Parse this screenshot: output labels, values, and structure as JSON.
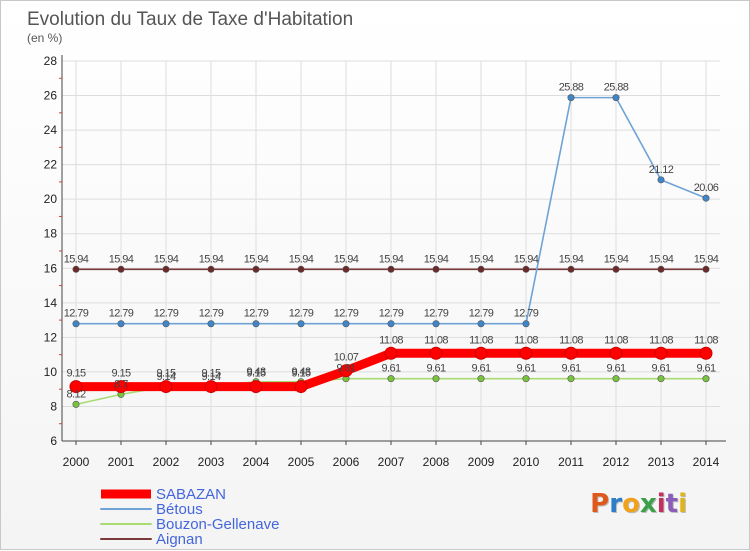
{
  "chart_data": {
    "type": "line",
    "title": "Evolution du Taux de Taxe d'Habitation",
    "subtitle": "(en %)",
    "xlabel": "",
    "ylabel": "",
    "categories": [
      "2000",
      "2001",
      "2002",
      "2003",
      "2004",
      "2005",
      "2006",
      "2007",
      "2008",
      "2009",
      "2010",
      "2011",
      "2012",
      "2013",
      "2014"
    ],
    "ylim": [
      6,
      28
    ],
    "yticks": [
      6,
      8,
      10,
      12,
      14,
      16,
      18,
      20,
      22,
      24,
      26,
      28
    ],
    "grid": true,
    "legend_placement": "bottom-left",
    "series": [
      {
        "name": "SABAZAN",
        "color": "#ff0000",
        "marker_color": "#ff0000",
        "values": [
          9.15,
          9.15,
          9.15,
          9.15,
          9.15,
          9.15,
          10.07,
          11.08,
          11.08,
          11.08,
          11.08,
          11.08,
          11.08,
          11.08,
          11.08
        ],
        "labels": [
          "9.15",
          "9.15",
          "9.15",
          "9.15",
          "9.15",
          "9.15",
          "10.07",
          "11.08",
          "11.08",
          "11.08",
          "11.08",
          "11.08",
          "11.08",
          "11.08",
          "11.08"
        ]
      },
      {
        "name": "Bétous",
        "color": "#6fa3d6",
        "marker_color": "#3f86c9",
        "values": [
          12.79,
          12.79,
          12.79,
          12.79,
          12.79,
          12.79,
          12.79,
          12.79,
          12.79,
          12.79,
          12.79,
          25.88,
          25.88,
          21.12,
          20.06
        ],
        "labels": [
          "12.79",
          "12.79",
          "12.79",
          "12.79",
          "12.79",
          "12.79",
          "12.79",
          "12.79",
          "12.79",
          "12.79",
          "12.79",
          "25.88",
          "25.88",
          "21.12",
          "20.06"
        ]
      },
      {
        "name": "Bouzon-Gellenave",
        "color": "#a8db72",
        "marker_color": "#79c43e",
        "values": [
          8.12,
          8.7,
          9.14,
          9.14,
          9.43,
          9.43,
          9.61,
          9.61,
          9.61,
          9.61,
          9.61,
          9.61,
          9.61,
          9.61,
          9.61
        ],
        "labels": [
          "8.12",
          "8.7",
          "9.14",
          "9.14",
          "9.43",
          "9.43",
          "9.61",
          "9.61",
          "9.61",
          "9.61",
          "9.61",
          "9.61",
          "9.61",
          "9.61",
          "9.61"
        ]
      },
      {
        "name": "Aignan",
        "color": "#7a3a3a",
        "marker_color": "#6a2a2a",
        "values": [
          15.94,
          15.94,
          15.94,
          15.94,
          15.94,
          15.94,
          15.94,
          15.94,
          15.94,
          15.94,
          15.94,
          15.94,
          15.94,
          15.94,
          15.94
        ],
        "labels": [
          "15.94",
          "15.94",
          "15.94",
          "15.94",
          "15.94",
          "15.94",
          "15.94",
          "15.94",
          "15.94",
          "15.94",
          "15.94",
          "15.94",
          "15.94",
          "15.94",
          "15.94"
        ]
      }
    ],
    "legend_label_color": "#4466dd",
    "grid_color": "#dddddd",
    "axis_color": "#444444"
  },
  "branding": {
    "logo_text": "Proxiti",
    "logo_colors": [
      "#e0591c",
      "#2b7fc7",
      "#f0a21c",
      "#3aa14a",
      "#c2315e",
      "#8d5cb8",
      "#e2b21a"
    ]
  }
}
